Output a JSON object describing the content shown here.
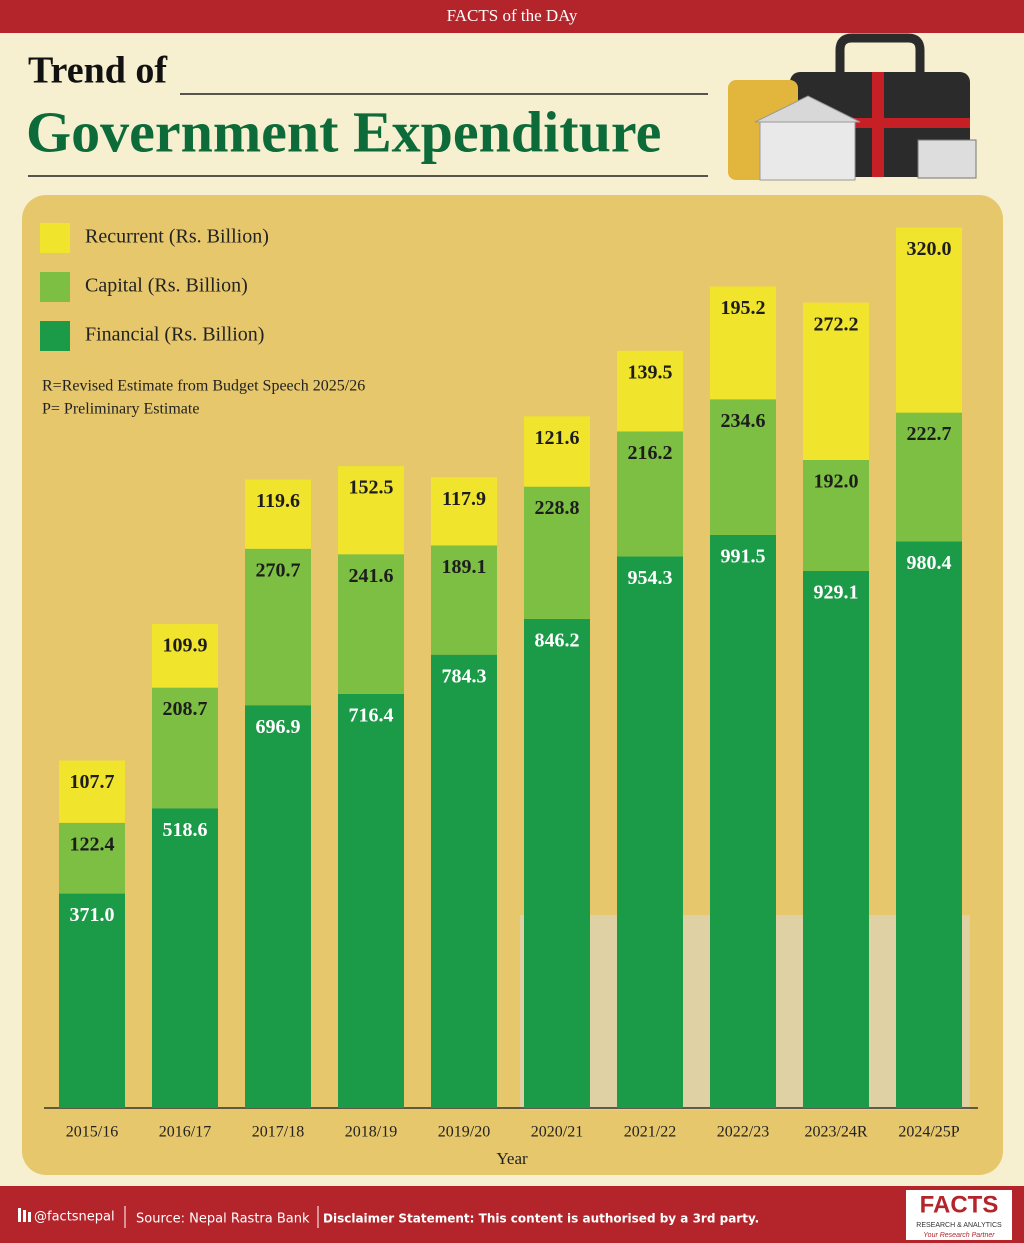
{
  "header": {
    "banner": "FACTS of the DAy",
    "title_lines": [
      "Trend of",
      "Government Expenditure"
    ]
  },
  "chart_data": {
    "type": "stacked-bar",
    "x_label": "Year",
    "notes": [
      "R=Revised Estimate from Budget Speech 2025/26",
      "P= Preliminary Estimate"
    ],
    "categories": [
      "2015/16",
      "2016/17",
      "2017/18",
      "2018/19",
      "2019/20",
      "2020/21",
      "2021/22",
      "2022/23",
      "2023/24R",
      "2024/25P"
    ],
    "series": [
      {
        "name": "Financial (Rs. Billion)",
        "color": "#1b9a48",
        "label_color": "#ffffff",
        "values": [
          371.0,
          518.6,
          696.9,
          716.4,
          784.3,
          846.2,
          954.3,
          991.5,
          929.1,
          980.4
        ],
        "value_labels": [
          "371.0",
          "518.6",
          "696.9",
          "716.4",
          "784.3",
          "846.2",
          "954.3",
          "991.5",
          "929.1",
          "980.4"
        ]
      },
      {
        "name": "Capital (Rs. Billion)",
        "color": "#7cbf42",
        "label_color": "#1d1d1d",
        "values": [
          122.4,
          208.7,
          270.7,
          241.6,
          189.1,
          228.8,
          216.2,
          234.6,
          192.0,
          222.7
        ],
        "value_labels": [
          "122.4",
          "208.7",
          "270.7",
          "241.6",
          "189.1",
          "228.8",
          "216.2",
          "234.6",
          "192.0",
          "222.7"
        ]
      },
      {
        "name": "Recurrent (Rs. Billion)",
        "color": "#f0e52c",
        "label_color": "#1d1d1d",
        "values": [
          107.7,
          109.9,
          119.6,
          152.5,
          117.9,
          121.6,
          139.5,
          195.2,
          272.2,
          320.0
        ],
        "value_labels": [
          "107.7",
          "109.9",
          "119.6",
          "152.5",
          "117.9",
          "121.6",
          "139.5",
          "195.2",
          "272.2",
          "320.0"
        ]
      }
    ]
  },
  "footer": {
    "handle": "@factsnepal",
    "source": "Source: Nepal Rastra Bank",
    "disclaimer": "Disclaimer Statement: This content is authorised by a 3rd party.",
    "logo": "FACTS",
    "logo_sub": "RESEARCH & ANALYTICS",
    "logo_tag": "Your Research Partner"
  }
}
